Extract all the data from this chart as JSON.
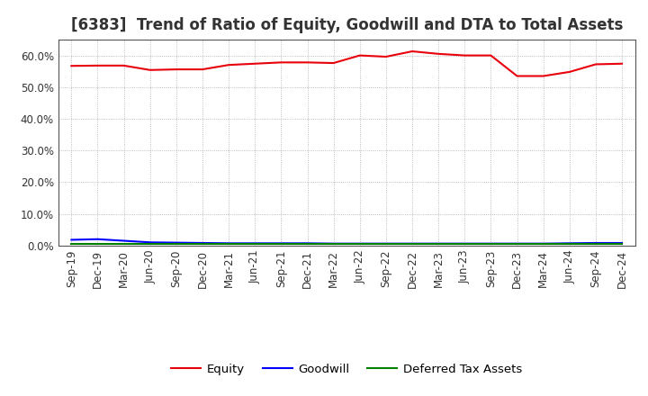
{
  "title": "[6383]  Trend of Ratio of Equity, Goodwill and DTA to Total Assets",
  "x_labels": [
    "Sep-19",
    "Dec-19",
    "Mar-20",
    "Jun-20",
    "Sep-20",
    "Dec-20",
    "Mar-21",
    "Jun-21",
    "Sep-21",
    "Dec-21",
    "Mar-22",
    "Jun-22",
    "Sep-22",
    "Dec-22",
    "Mar-23",
    "Jun-23",
    "Sep-23",
    "Dec-23",
    "Mar-24",
    "Jun-24",
    "Sep-24",
    "Dec-24"
  ],
  "equity": [
    0.567,
    0.568,
    0.568,
    0.554,
    0.556,
    0.556,
    0.57,
    0.574,
    0.578,
    0.578,
    0.576,
    0.6,
    0.596,
    0.613,
    0.605,
    0.6,
    0.6,
    0.535,
    0.535,
    0.548,
    0.572,
    0.574
  ],
  "goodwill": [
    0.018,
    0.02,
    0.015,
    0.01,
    0.009,
    0.008,
    0.007,
    0.007,
    0.007,
    0.007,
    0.006,
    0.006,
    0.006,
    0.006,
    0.006,
    0.006,
    0.006,
    0.006,
    0.006,
    0.007,
    0.008,
    0.008
  ],
  "dta": [
    0.004,
    0.004,
    0.004,
    0.004,
    0.004,
    0.004,
    0.004,
    0.004,
    0.004,
    0.004,
    0.004,
    0.004,
    0.004,
    0.004,
    0.004,
    0.004,
    0.004,
    0.004,
    0.004,
    0.004,
    0.004,
    0.004
  ],
  "equity_color": "#e8000d",
  "goodwill_color": "#0000ff",
  "dta_color": "#008000",
  "background_color": "#ffffff",
  "plot_bg_color": "#ffffff",
  "grid_color": "#aaaaaa",
  "ylim": [
    0.0,
    0.65
  ],
  "yticks": [
    0.0,
    0.1,
    0.2,
    0.3,
    0.4,
    0.5,
    0.6
  ],
  "legend_labels": [
    "Equity",
    "Goodwill",
    "Deferred Tax Assets"
  ],
  "title_fontsize": 12,
  "tick_fontsize": 8.5,
  "legend_fontsize": 9.5
}
